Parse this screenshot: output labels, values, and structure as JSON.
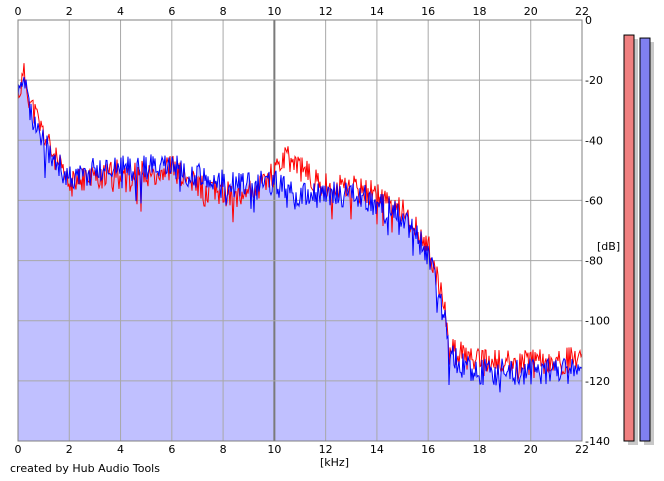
{
  "credit": "created by Hub Audio Tools",
  "chart_data": {
    "type": "area",
    "xlabel": "[kHz]",
    "ylabel": "[dB]",
    "xlim": [
      0,
      22
    ],
    "ylim": [
      -140,
      0
    ],
    "x_ticks": [
      "0",
      "2",
      "4",
      "6",
      "8",
      "10",
      "12",
      "14",
      "16",
      "18",
      "20",
      "22"
    ],
    "y_ticks": [
      "0",
      "-20",
      "-40",
      "-60",
      "-80",
      "-100",
      "-120",
      "-140"
    ],
    "grid": true,
    "x_major_ticks": [
      10
    ],
    "series": [
      {
        "color": "#ff0000",
        "x": [
          0,
          0.25,
          0.5,
          1,
          1.5,
          2,
          2.5,
          3,
          3.5,
          4,
          4.5,
          5,
          5.5,
          6,
          6.5,
          7,
          7.5,
          8,
          8.5,
          9,
          9.5,
          10,
          10.5,
          11,
          11.5,
          12,
          12.5,
          13,
          13.5,
          14,
          14.5,
          15,
          15.5,
          16,
          16.3,
          16.6,
          16.8,
          17,
          17.5,
          18,
          19,
          20,
          21,
          22
        ],
        "y": [
          -25,
          -18,
          -28,
          -38,
          -47,
          -55,
          -53,
          -52,
          -52,
          -50,
          -51,
          -51,
          -50,
          -49,
          -53,
          -55,
          -56,
          -58,
          -58,
          -56,
          -55,
          -50,
          -46,
          -49,
          -53,
          -55,
          -56,
          -56,
          -57,
          -58,
          -60,
          -63,
          -69,
          -75,
          -85,
          -95,
          -105,
          -110,
          -112,
          -114,
          -114,
          -114,
          -114,
          -112
        ]
      },
      {
        "color": "#0000ff",
        "x": [
          0,
          0.25,
          0.5,
          1,
          1.5,
          2,
          2.5,
          3,
          3.5,
          4,
          4.5,
          5,
          5.5,
          6,
          6.5,
          7,
          7.5,
          8,
          8.5,
          9,
          9.5,
          10,
          10.5,
          11,
          11.5,
          12,
          12.5,
          13,
          13.5,
          14,
          14.5,
          15,
          15.5,
          16,
          16.3,
          16.6,
          16.8,
          17,
          17.5,
          18,
          19,
          20,
          21,
          22
        ],
        "y": [
          -27,
          -22,
          -30,
          -40,
          -48,
          -52,
          -52,
          -50,
          -49,
          -48,
          -50,
          -49,
          -48,
          -48,
          -51,
          -52,
          -54,
          -54,
          -55,
          -53,
          -54,
          -54,
          -56,
          -58,
          -58,
          -58,
          -58,
          -58,
          -59,
          -61,
          -63,
          -66,
          -71,
          -78,
          -88,
          -98,
          -108,
          -113,
          -116,
          -117,
          -117,
          -117,
          -117,
          -116
        ]
      }
    ],
    "level_meters": [
      {
        "color": "#f08080",
        "level_db": -5
      },
      {
        "color": "#8080f0",
        "level_db": -6
      }
    ]
  }
}
